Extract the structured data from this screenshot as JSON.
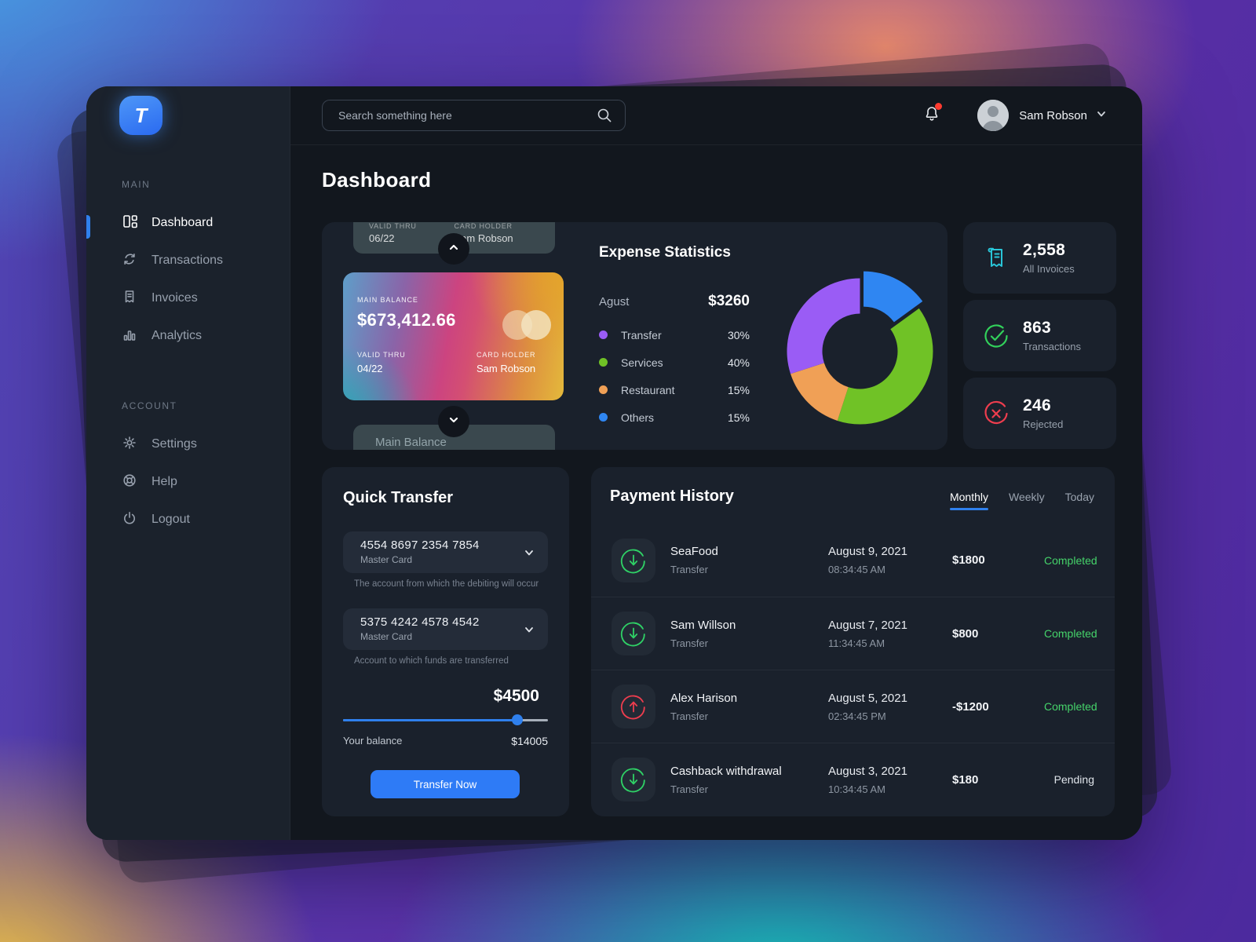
{
  "app": {
    "logo_letter": "T"
  },
  "topbar": {
    "search_placeholder": "Search something here",
    "user_name": "Sam Robson"
  },
  "sidebar": {
    "sections": [
      {
        "label": "MAIN",
        "items": [
          {
            "label": "Dashboard",
            "icon": "dashboard-icon",
            "active": true
          },
          {
            "label": "Transactions",
            "icon": "transactions-icon",
            "active": false
          },
          {
            "label": "Invoices",
            "icon": "invoices-icon",
            "active": false
          },
          {
            "label": "Analytics",
            "icon": "analytics-icon",
            "active": false
          }
        ]
      },
      {
        "label": "ACCOUNT",
        "items": [
          {
            "label": "Settings",
            "icon": "settings-icon",
            "active": false
          },
          {
            "label": "Help",
            "icon": "help-icon",
            "active": false
          },
          {
            "label": "Logout",
            "icon": "logout-icon",
            "active": false
          }
        ]
      }
    ]
  },
  "page": {
    "title": "Dashboard"
  },
  "cards": {
    "previous": {
      "valid_thru_label": "VALID THRU",
      "valid_thru": "06/22",
      "card_holder_label": "CARD HOLDER",
      "card_holder": "Sam Robson"
    },
    "current": {
      "balance_label": "MAIN BALANCE",
      "balance": "$673,412.66",
      "valid_thru_label": "VALID THRU",
      "valid_thru": "04/22",
      "card_holder_label": "CARD HOLDER",
      "card_holder": "Sam Robson"
    },
    "next": {
      "label": "Main Balance"
    }
  },
  "expense": {
    "title": "Expense Statistics",
    "month": "Agust",
    "month_total": "$3260",
    "legend": [
      {
        "name": "Transfer",
        "pct": "30%",
        "color": "#9a5cf5"
      },
      {
        "name": "Services",
        "pct": "40%",
        "color": "#70c226"
      },
      {
        "name": "Restaurant",
        "pct": "15%",
        "color": "#f0a056"
      },
      {
        "name": "Others",
        "pct": "15%",
        "color": "#2f86f2"
      }
    ]
  },
  "chart_data": {
    "type": "pie",
    "title": "Expense Statistics",
    "period_label": "Agust",
    "period_total": "$3260",
    "categories": [
      "Transfer",
      "Services",
      "Restaurant",
      "Others"
    ],
    "values": [
      30,
      40,
      15,
      15
    ],
    "donut_hole_ratio": 0.52,
    "legend_position": "left",
    "slices_clockwise_from_top": [
      {
        "name": "Others",
        "value": 15,
        "color": "#2f86f2",
        "explode": 10
      },
      {
        "name": "Services",
        "value": 40,
        "color": "#70c226",
        "explode": 0
      },
      {
        "name": "Restaurant",
        "value": 15,
        "color": "#f0a056",
        "explode": 0
      },
      {
        "name": "Transfer",
        "value": 30,
        "color": "#9a5cf5",
        "explode": 0
      }
    ]
  },
  "stats": [
    {
      "value": "2,558",
      "label": "All Invoices",
      "icon": "invoice-icon",
      "color": "#29c5d8"
    },
    {
      "value": "863",
      "label": "Transactions",
      "icon": "check-circle-icon",
      "color": "#32d15b"
    },
    {
      "value": "246",
      "label": "Rejected",
      "icon": "x-circle-icon",
      "color": "#ee3d4e"
    }
  ],
  "quick_transfer": {
    "title": "Quick Transfer",
    "from_account": {
      "number": "4554 8697 2354 7854",
      "type": "Master Card"
    },
    "from_help": "The account from which the debiting will occur",
    "to_account": {
      "number": "5375 4242 4578 4542",
      "type": "Master Card"
    },
    "to_help": "Account to which funds are transferred",
    "amount": "$4500",
    "slider_pct": 85,
    "balance_label": "Your balance",
    "balance": "$14005",
    "button_label": "Transfer Now"
  },
  "payment_history": {
    "title": "Payment History",
    "tabs": [
      {
        "label": "Monthly",
        "active": true
      },
      {
        "label": "Weekly",
        "active": false
      },
      {
        "label": "Today",
        "active": false
      }
    ],
    "rows": [
      {
        "name": "SeaFood",
        "type": "Transfer",
        "date": "August 9, 2021",
        "time": "08:34:45 AM",
        "amount": "$1800",
        "status": "Completed",
        "direction": "in"
      },
      {
        "name": "Sam Willson",
        "type": "Transfer",
        "date": "August 7, 2021",
        "time": "11:34:45 AM",
        "amount": "$800",
        "status": "Completed",
        "direction": "in"
      },
      {
        "name": "Alex Harison",
        "type": "Transfer",
        "date": "August 5, 2021",
        "time": "02:34:45 PM",
        "amount": "-$1200",
        "status": "Completed",
        "direction": "out"
      },
      {
        "name": "Cashback withdrawal",
        "type": "Transfer",
        "date": "August 3, 2021",
        "time": "10:34:45 AM",
        "amount": "$180",
        "status": "Pending",
        "direction": "in"
      }
    ]
  },
  "colors": {
    "accent_blue": "#2f80ed",
    "success_green": "#45d36a",
    "danger_red": "#ee3d4e",
    "teal": "#29c5d8",
    "panel_bg": "#1a212c",
    "window_bg": "#12171e",
    "sidebar_bg": "#1b222c"
  }
}
